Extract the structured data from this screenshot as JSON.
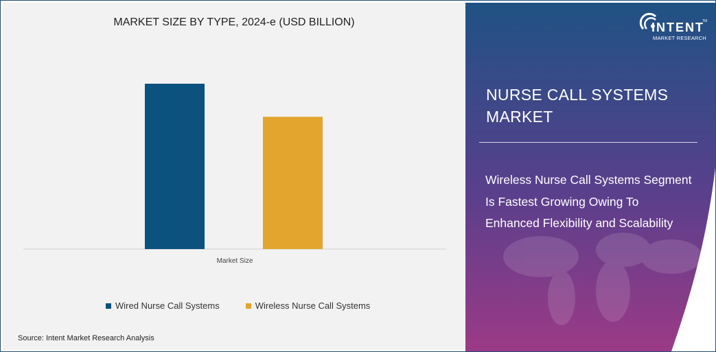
{
  "chart_data": {
    "type": "bar",
    "title": "MARKET SIZE BY TYPE, 2024-e (USD BILLION)",
    "categories": [
      "Market Size"
    ],
    "series": [
      {
        "name": "Wired Nurse Call Systems",
        "values": [
          1.0
        ],
        "color": "#0b527e"
      },
      {
        "name": "Wireless Nurse Call Systems",
        "values": [
          0.8
        ],
        "color": "#e3a52e"
      }
    ],
    "value_note_visible": false,
    "ylim": [
      0,
      1.0
    ],
    "grid": false,
    "legend_position": "bottom"
  },
  "source": "Source:  Intent Market Research Analysis",
  "panel": {
    "title_line1": "NURSE CALL SYSTEMS",
    "title_line2": "MARKET",
    "subtitle_lines": [
      "Wireless Nurse Call Systems Segment",
      "Is Fastest Growing Owing To",
      "Enhanced Flexibility and Scalability"
    ],
    "gradient_top": "#1f5284",
    "gradient_bottom": "#9c3a86"
  },
  "logo": {
    "word": "INTENT",
    "tm": "TM",
    "sub": "MARKET RESEARCH"
  }
}
